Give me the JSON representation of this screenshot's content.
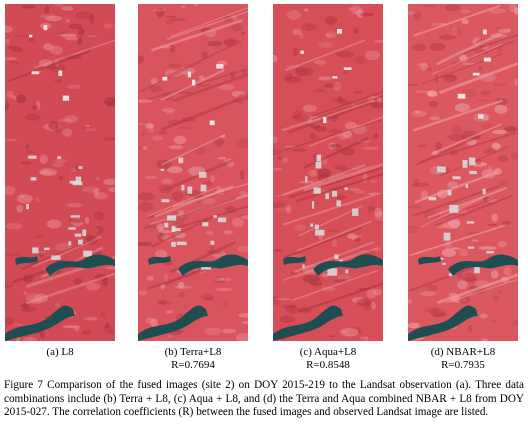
{
  "panels": [
    {
      "label": "(a) L8",
      "r": "",
      "colors": {
        "base": "#d24a55",
        "dark": "#a8323c",
        "light": "#e88a92"
      }
    },
    {
      "label": "(b) Terra+L8",
      "r": "R=0.7694",
      "colors": {
        "base": "#d9545e",
        "dark": "#b13a44",
        "light": "#eea0a6"
      }
    },
    {
      "label": "(c) Aqua+L8",
      "r": "R=0.8548",
      "colors": {
        "base": "#d64e58",
        "dark": "#ab343e",
        "light": "#ea9097"
      }
    },
    {
      "label": "(d) NBAR+L8",
      "r": "R=0.7935",
      "colors": {
        "base": "#dc5861",
        "dark": "#b43c46",
        "light": "#f0a6ab"
      }
    }
  ],
  "caption": "Figure 7 Comparison of the fused images (site 2) on DOY 2015-219 to the Landsat observation (a). Three data combinations include (b) Terra + L8, (c) Aqua + L8, and (d) the Terra and Aqua combined NBAR + L8 from DOY 2015-027. The correlation coefficients (R) between the fused images and observed Landsat image are listed.",
  "colors": {
    "water": "#1f4e52",
    "urban": "#d8e0e4",
    "cloud": "#eef2f4"
  }
}
